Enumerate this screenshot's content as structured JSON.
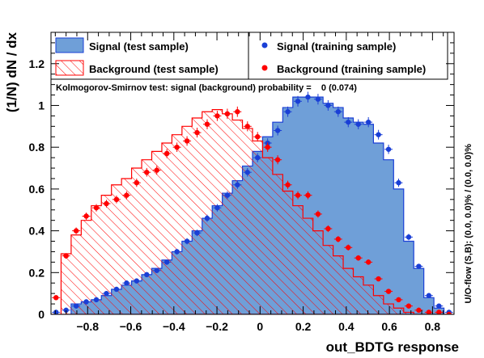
{
  "chart_data": {
    "type": "histogram",
    "xlabel": "out_BDTG response",
    "ylabel": "(1/N) dN / dx",
    "xlim": [
      -0.97,
      0.9
    ],
    "ylim": [
      0,
      1.35
    ],
    "x_ticks": [
      -0.8,
      -0.6,
      -0.4,
      -0.2,
      0,
      0.2,
      0.4,
      0.6,
      0.8
    ],
    "x_tick_labels": [
      "−0.8",
      "−0.6",
      "−0.4",
      "−0.2",
      "0",
      "0.2",
      "0.4",
      "0.6",
      "0.8"
    ],
    "y_ticks": [
      0,
      0.2,
      0.4,
      0.6,
      0.8,
      1,
      1.2
    ],
    "y_tick_labels": [
      "0",
      "0.2",
      "0.4",
      "0.6",
      "0.8",
      "1",
      "1.2"
    ],
    "bin_edges_start": -0.97,
    "bin_width": 0.04675,
    "series": [
      {
        "name": "Signal (test sample)",
        "kind": "filled-histogram",
        "color": "#6f9fd8",
        "edge_color": "#1a3fd6",
        "values": [
          0.0,
          0.0,
          0.05,
          0.06,
          0.07,
          0.09,
          0.12,
          0.14,
          0.16,
          0.19,
          0.22,
          0.26,
          0.3,
          0.35,
          0.4,
          0.46,
          0.52,
          0.58,
          0.64,
          0.71,
          0.78,
          0.85,
          0.92,
          0.99,
          1.04,
          1.04,
          1.04,
          1.01,
          0.99,
          0.94,
          0.92,
          0.91,
          0.82,
          0.74,
          0.6,
          0.35,
          0.22,
          0.08,
          0.03,
          0.0
        ]
      },
      {
        "name": "Background (test sample)",
        "kind": "hatched-histogram",
        "color": "#ff0000",
        "values": [
          0.0,
          0.29,
          0.38,
          0.45,
          0.52,
          0.57,
          0.62,
          0.65,
          0.7,
          0.74,
          0.78,
          0.82,
          0.86,
          0.9,
          0.94,
          0.97,
          0.98,
          0.96,
          0.93,
          0.89,
          0.83,
          0.75,
          0.67,
          0.59,
          0.52,
          0.46,
          0.4,
          0.33,
          0.28,
          0.22,
          0.18,
          0.14,
          0.09,
          0.05,
          0.03,
          0.01,
          0.0,
          0.0,
          0.0,
          0.0
        ]
      },
      {
        "name": "Signal (training sample)",
        "kind": "points",
        "color": "#1a3fd6",
        "values": [
          0.01,
          0.02,
          0.04,
          0.06,
          0.07,
          0.1,
          0.12,
          0.15,
          0.16,
          0.19,
          0.21,
          0.25,
          0.3,
          0.35,
          0.39,
          0.46,
          0.51,
          0.57,
          0.62,
          0.68,
          0.75,
          0.82,
          0.88,
          0.97,
          1.02,
          1.04,
          1.03,
          1.0,
          0.97,
          0.92,
          0.91,
          0.92,
          0.86,
          0.79,
          0.63,
          0.37,
          0.23,
          0.09,
          0.04,
          0.01
        ]
      },
      {
        "name": "Background (training sample)",
        "kind": "points",
        "color": "#ff0000",
        "values": [
          0.08,
          0.28,
          0.4,
          0.47,
          0.51,
          0.53,
          0.55,
          0.57,
          0.63,
          0.68,
          0.69,
          0.77,
          0.8,
          0.83,
          0.87,
          0.91,
          0.95,
          0.96,
          0.97,
          0.9,
          0.85,
          0.8,
          0.74,
          0.62,
          0.57,
          0.57,
          0.48,
          0.41,
          0.36,
          0.32,
          0.27,
          0.25,
          0.17,
          0.11,
          0.07,
          0.04,
          0.02,
          0.01,
          0.01,
          0.0
        ]
      }
    ],
    "annotation": "Kolmogorov-Smirnov test: signal (background) probability =    0 (0.074)",
    "side_label": "U/O-flow (S,B): (0.0, 0.0)% / (0.0, 0.0)%",
    "legend_placement": "top"
  }
}
